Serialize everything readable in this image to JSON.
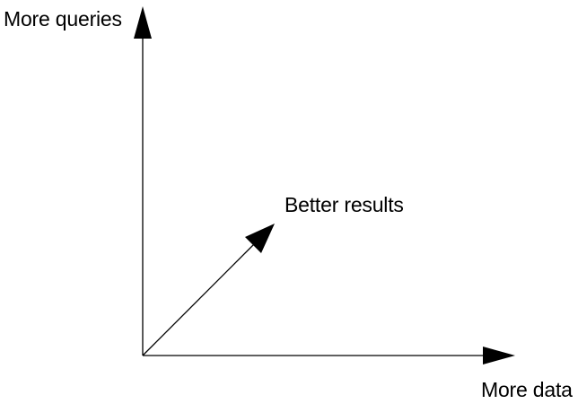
{
  "diagram": {
    "y_axis_label": "More queries",
    "x_axis_label": "More data",
    "diagonal_label": "Better results",
    "line_color": "#000000",
    "arrowhead_style": "filled-triangle"
  }
}
